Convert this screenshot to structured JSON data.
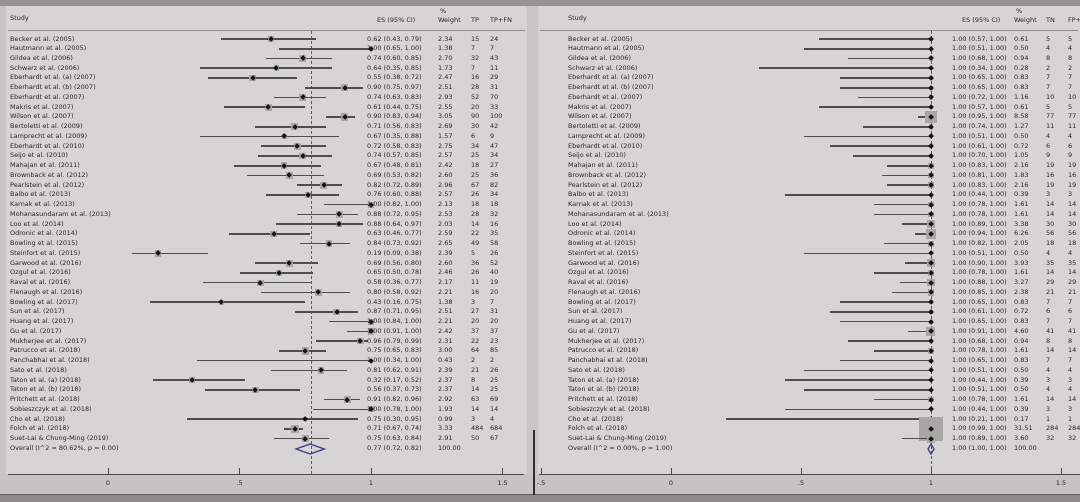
{
  "figure": {
    "description_note": "",
    "ref_line_color": "#9c4040",
    "diamond_color": "#3a3a86",
    "marker_color": "#151515",
    "weight_box_color": "#a9a7a5",
    "panel_bg": "#d7d5d3"
  },
  "chart_data": [
    {
      "type": "forest",
      "panel": "left",
      "columns": {
        "study": "Study",
        "es_ci": "ES (95% CI)",
        "weight_line1": "%",
        "weight_line2": "Weight",
        "n1": "TP",
        "n2": "TP+FN"
      },
      "x_axis": {
        "ticks": [
          {
            "label": "0",
            "value": 0
          },
          {
            "label": ".5",
            "value": 0.5
          },
          {
            "label": "1",
            "value": 1
          },
          {
            "label": "1.5",
            "value": 1.5
          }
        ]
      },
      "ref_line": 0.77,
      "row_fields": [
        "study",
        "es",
        "ci_lo",
        "ci_hi",
        "weight_pct",
        "n1",
        "n2"
      ],
      "rows": [
        [
          "Becker et al. (2005)",
          0.62,
          0.43,
          0.79,
          2.34,
          15,
          24
        ],
        [
          "Hautmann et al. (2005)",
          1.0,
          0.65,
          1.0,
          1.38,
          7,
          7
        ],
        [
          "Gildea et al. (2006)",
          0.74,
          0.6,
          0.85,
          2.7,
          32,
          43
        ],
        [
          "Schwarz et al. (2006)",
          0.64,
          0.35,
          0.85,
          1.73,
          7,
          11
        ],
        [
          "Eberhardt et al. (a) (2007)",
          0.55,
          0.38,
          0.72,
          2.47,
          16,
          29
        ],
        [
          "Eberhardt et al. (b) (2007)",
          0.9,
          0.75,
          0.97,
          2.51,
          28,
          31
        ],
        [
          "Eberhardt et al. (2007)",
          0.74,
          0.63,
          0.83,
          2.93,
          52,
          70
        ],
        [
          "Makris et al. (2007)",
          0.61,
          0.44,
          0.75,
          2.55,
          20,
          33
        ],
        [
          "Wilson et al. (2007)",
          0.9,
          0.83,
          0.94,
          3.05,
          90,
          100
        ],
        [
          "Bertoletti et al. (2009)",
          0.71,
          0.56,
          0.83,
          2.69,
          30,
          42
        ],
        [
          "Lamprecht et al. (2009)",
          0.67,
          0.35,
          0.88,
          1.57,
          6,
          9
        ],
        [
          "Eberhardt et al. (2010)",
          0.72,
          0.58,
          0.83,
          2.75,
          34,
          47
        ],
        [
          "Seijo et al. (2010)",
          0.74,
          0.57,
          0.85,
          2.57,
          25,
          34
        ],
        [
          "Mahajan et al. (2011)",
          0.67,
          0.48,
          0.81,
          2.42,
          18,
          27
        ],
        [
          "Brownback et al. (2012)",
          0.69,
          0.53,
          0.82,
          2.6,
          25,
          36
        ],
        [
          "Pearlstein et al. (2012)",
          0.82,
          0.72,
          0.89,
          2.96,
          67,
          82
        ],
        [
          "Balbo et al. (2013)",
          0.76,
          0.6,
          0.88,
          2.57,
          26,
          34
        ],
        [
          "Karnak et al. (2013)",
          1.0,
          0.82,
          1.0,
          2.13,
          18,
          18
        ],
        [
          "Mohanasundaram et al. (2013)",
          0.88,
          0.72,
          0.95,
          2.53,
          28,
          32
        ],
        [
          "Loo et al. (2014)",
          0.88,
          0.64,
          0.97,
          2.03,
          14,
          16
        ],
        [
          "Odronic et al. (2014)",
          0.63,
          0.46,
          0.77,
          2.59,
          22,
          35
        ],
        [
          "Bowling et al. (2015)",
          0.84,
          0.73,
          0.92,
          2.65,
          49,
          58
        ],
        [
          "Steinfort et al. (2015)",
          0.19,
          0.09,
          0.38,
          2.39,
          5,
          26
        ],
        [
          "Garwood et al. (2016)",
          0.69,
          0.56,
          0.8,
          2.6,
          36,
          52
        ],
        [
          "Ozgul et al. (2016)",
          0.65,
          0.5,
          0.78,
          2.46,
          26,
          40
        ],
        [
          "Raval et al. (2016)",
          0.58,
          0.36,
          0.77,
          2.17,
          11,
          19
        ],
        [
          "Flenaugh et al. (2016)",
          0.8,
          0.58,
          0.92,
          2.21,
          16,
          20
        ],
        [
          "Bowling et al. (2017)",
          0.43,
          0.16,
          0.75,
          1.38,
          3,
          7
        ],
        [
          "Sun et al. (2017)",
          0.87,
          0.71,
          0.95,
          2.51,
          27,
          31
        ],
        [
          "Huang et al. (2017)",
          1.0,
          0.84,
          1.0,
          2.21,
          20,
          20
        ],
        [
          "Gu et al. (2017)",
          1.0,
          0.91,
          1.0,
          2.42,
          37,
          37
        ],
        [
          "Mukherjee et al. (2017)",
          0.96,
          0.79,
          0.99,
          2.31,
          22,
          23
        ],
        [
          "Patrucco et al. (2018)",
          0.75,
          0.65,
          0.83,
          3.0,
          64,
          85
        ],
        [
          "Panchabhai et al. (2018)",
          1.0,
          0.34,
          1.0,
          0.43,
          2,
          2
        ],
        [
          "Sato et al. (2018)",
          0.81,
          0.62,
          0.91,
          2.39,
          21,
          26
        ],
        [
          "Taton et al. (a) (2018)",
          0.32,
          0.17,
          0.52,
          2.37,
          8,
          25
        ],
        [
          "Taton et al. (b) (2018)",
          0.56,
          0.37,
          0.73,
          2.37,
          14,
          25
        ],
        [
          "Pritchett et al. (2018)",
          0.91,
          0.82,
          0.96,
          2.92,
          63,
          69
        ],
        [
          "Sobieszczyk et al. (2018)",
          1.0,
          0.78,
          1.0,
          1.93,
          14,
          14
        ],
        [
          "Cho et al. (2018)",
          0.75,
          0.3,
          0.95,
          0.99,
          3,
          4
        ],
        [
          "Folch et al. (2018)",
          0.71,
          0.67,
          0.74,
          3.33,
          484,
          684
        ],
        [
          "Suet-Lai & Chung-Ming (2019)",
          0.75,
          0.63,
          0.84,
          2.91,
          50,
          67
        ]
      ],
      "overall": {
        "label": "Overall  (I^2 = 80.62%, p = 0.00)",
        "es": 0.77,
        "ci_lo": 0.72,
        "ci_hi": 0.82,
        "weight_pct": "100.00"
      }
    },
    {
      "type": "forest",
      "panel": "right",
      "columns": {
        "study": "Study",
        "es_ci": "ES (95% CI)",
        "weight_line1": "%",
        "weight_line2": "Weight",
        "n1": "TN",
        "n2": "FP+"
      },
      "x_axis": {
        "ticks": [
          {
            "label": "-.5",
            "value": -0.5
          },
          {
            "label": "0",
            "value": 0
          },
          {
            "label": ".5",
            "value": 0.5
          },
          {
            "label": "1",
            "value": 1
          },
          {
            "label": "1.5",
            "value": 1.5
          }
        ]
      },
      "ref_line": 1.0,
      "row_fields": [
        "study",
        "es",
        "ci_lo",
        "ci_hi",
        "weight_pct",
        "n1",
        "n2"
      ],
      "rows": [
        [
          "Becker et al. (2005)",
          1.0,
          0.57,
          1.0,
          0.61,
          5,
          5
        ],
        [
          "Hautmann et al. (2005)",
          1.0,
          0.51,
          1.0,
          0.5,
          4,
          4
        ],
        [
          "Gildea et al. (2006)",
          1.0,
          0.68,
          1.0,
          0.94,
          8,
          8
        ],
        [
          "Schwarz et al. (2006)",
          1.0,
          0.34,
          1.0,
          0.28,
          2,
          2
        ],
        [
          "Eberhardt et al. (a) (2007)",
          1.0,
          0.65,
          1.0,
          0.83,
          7,
          7
        ],
        [
          "Eberhardt et al. (b) (2007)",
          1.0,
          0.65,
          1.0,
          0.83,
          7,
          7
        ],
        [
          "Eberhardt et al. (2007)",
          1.0,
          0.72,
          1.0,
          1.16,
          10,
          10
        ],
        [
          "Makris et al. (2007)",
          1.0,
          0.57,
          1.0,
          0.61,
          5,
          5
        ],
        [
          "Wilson et al. (2007)",
          1.0,
          0.95,
          1.0,
          8.58,
          77,
          77
        ],
        [
          "Bertoletti et al. (2009)",
          1.0,
          0.74,
          1.0,
          1.27,
          11,
          11
        ],
        [
          "Lamprecht et al. (2009)",
          1.0,
          0.51,
          1.0,
          0.5,
          4,
          4
        ],
        [
          "Eberhardt et al. (2010)",
          1.0,
          0.61,
          1.0,
          0.72,
          6,
          6
        ],
        [
          "Seijo et al. (2010)",
          1.0,
          0.7,
          1.0,
          1.05,
          9,
          9
        ],
        [
          "Mahajan et al. (2011)",
          1.0,
          0.83,
          1.0,
          2.16,
          19,
          19
        ],
        [
          "Brownback et al. (2012)",
          1.0,
          0.81,
          1.0,
          1.83,
          16,
          16
        ],
        [
          "Pearlstein et al. (2012)",
          1.0,
          0.83,
          1.0,
          2.16,
          19,
          19
        ],
        [
          "Balbo et al. (2013)",
          1.0,
          0.44,
          1.0,
          0.39,
          3,
          3
        ],
        [
          "Karnak et al. (2013)",
          1.0,
          0.78,
          1.0,
          1.61,
          14,
          14
        ],
        [
          "Mohanasundaram et al. (2013)",
          1.0,
          0.78,
          1.0,
          1.61,
          14,
          14
        ],
        [
          "Loo et al. (2014)",
          1.0,
          0.89,
          1.0,
          3.38,
          30,
          30
        ],
        [
          "Odronic et al. (2014)",
          1.0,
          0.94,
          1.0,
          6.26,
          56,
          56
        ],
        [
          "Bowling et al. (2015)",
          1.0,
          0.82,
          1.0,
          2.05,
          18,
          18
        ],
        [
          "Steinfort et al. (2015)",
          1.0,
          0.51,
          1.0,
          0.5,
          4,
          4
        ],
        [
          "Garwood et al. (2016)",
          1.0,
          0.9,
          1.0,
          3.93,
          35,
          35
        ],
        [
          "Ozgul et al. (2016)",
          1.0,
          0.78,
          1.0,
          1.61,
          14,
          14
        ],
        [
          "Raval et al. (2016)",
          1.0,
          0.88,
          1.0,
          3.27,
          29,
          29
        ],
        [
          "Flenaugh et al. (2016)",
          1.0,
          0.85,
          1.0,
          2.38,
          21,
          21
        ],
        [
          "Bowling et al. (2017)",
          1.0,
          0.65,
          1.0,
          0.83,
          7,
          7
        ],
        [
          "Sun et al. (2017)",
          1.0,
          0.61,
          1.0,
          0.72,
          6,
          6
        ],
        [
          "Huang et al. (2017)",
          1.0,
          0.65,
          1.0,
          0.83,
          7,
          7
        ],
        [
          "Gu et al. (2017)",
          1.0,
          0.91,
          1.0,
          4.6,
          41,
          41
        ],
        [
          "Mukherjee et al. (2017)",
          1.0,
          0.68,
          1.0,
          0.94,
          8,
          8
        ],
        [
          "Patrucco et al. (2018)",
          1.0,
          0.78,
          1.0,
          1.61,
          14,
          14
        ],
        [
          "Panchabhai et al. (2018)",
          1.0,
          0.65,
          1.0,
          0.83,
          7,
          7
        ],
        [
          "Sato et al. (2018)",
          1.0,
          0.51,
          1.0,
          0.5,
          4,
          4
        ],
        [
          "Taton et al. (a) (2018)",
          1.0,
          0.44,
          1.0,
          0.39,
          3,
          3
        ],
        [
          "Taton et al. (b) (2018)",
          1.0,
          0.51,
          1.0,
          0.5,
          4,
          4
        ],
        [
          "Pritchett et al. (2018)",
          1.0,
          0.78,
          1.0,
          1.61,
          14,
          14
        ],
        [
          "Sobieszczyk et al. (2018)",
          1.0,
          0.44,
          1.0,
          0.39,
          3,
          3
        ],
        [
          "Cho et al. (2018)",
          1.0,
          0.21,
          1.0,
          0.17,
          1,
          1
        ],
        [
          "Folch et al. (2018)",
          1.0,
          0.99,
          1.0,
          31.51,
          284,
          284
        ],
        [
          "Suet-Lai & Chung-Ming (2019)",
          1.0,
          0.89,
          1.0,
          3.6,
          32,
          32
        ]
      ],
      "overall": {
        "label": "Overall  (I^2 = 0.00%, p = 1.00)",
        "es": 1.0,
        "ci_lo": 1.0,
        "ci_hi": 1.0,
        "weight_pct": "100.00"
      }
    }
  ]
}
